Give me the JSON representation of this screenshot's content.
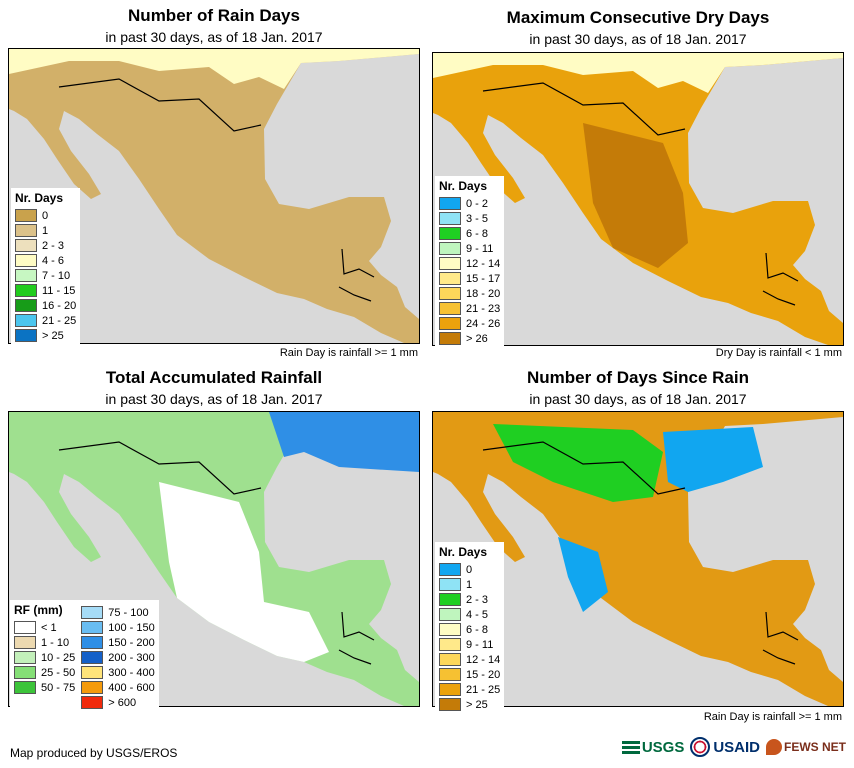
{
  "panels": [
    {
      "id": "rain-days",
      "title": "Number of Rain Days",
      "subtitle": "in past 30 days, as of 18 Jan. 2017",
      "note": "Rain Day is rainfall >= 1 mm",
      "land_color": "#d2b069",
      "legend": {
        "title": "Nr. Days",
        "items": [
          {
            "label": "0",
            "color": "#c9a24c"
          },
          {
            "label": "1",
            "color": "#dcc28a"
          },
          {
            "label": "2 - 3",
            "color": "#ede0bd"
          },
          {
            "label": "4 - 6",
            "color": "#fffcc4"
          },
          {
            "label": "7 - 10",
            "color": "#c7f7c2"
          },
          {
            "label": "11 - 15",
            "color": "#21cc1e"
          },
          {
            "label": "16 - 20",
            "color": "#179c18"
          },
          {
            "label": "21 - 25",
            "color": "#4cc6ee"
          },
          {
            "label": "> 25",
            "color": "#0b73c3"
          }
        ]
      }
    },
    {
      "id": "dry-days",
      "title": "Maximum Consecutive Dry Days",
      "subtitle": "in past 30 days, as of 18 Jan. 2017",
      "note": "Dry Day is rainfall < 1 mm",
      "land_color": "#e9a20c",
      "legend": {
        "title": "Nr. Days",
        "items": [
          {
            "label": "0 - 2",
            "color": "#11a6f0"
          },
          {
            "label": "3 - 5",
            "color": "#8fe3f5"
          },
          {
            "label": "6 - 8",
            "color": "#1fcf22"
          },
          {
            "label": "9 - 11",
            "color": "#bff5be"
          },
          {
            "label": "12 - 14",
            "color": "#fffcc4"
          },
          {
            "label": "15 - 17",
            "color": "#ffe98a"
          },
          {
            "label": "18 - 20",
            "color": "#fdd75a"
          },
          {
            "label": "21 - 23",
            "color": "#f6c132"
          },
          {
            "label": "24 - 26",
            "color": "#eba20c"
          },
          {
            "label": "> 26",
            "color": "#c47b08"
          }
        ]
      }
    },
    {
      "id": "total-rainfall",
      "title": "Total Accumulated Rainfall",
      "subtitle": "in past 30 days, as of 18 Jan. 2017",
      "note": "",
      "land_color": "#9fe08f",
      "legend": {
        "title": "RF (mm)",
        "items": [
          {
            "label": "< 1",
            "color": "#ffffff"
          },
          {
            "label": "1 - 10",
            "color": "#ecd9b0"
          },
          {
            "label": "10 - 25",
            "color": "#c3f0ba"
          },
          {
            "label": "25 - 50",
            "color": "#85df76"
          },
          {
            "label": "50 - 75",
            "color": "#3cc43a"
          },
          {
            "label": "75 - 100",
            "color": "#a6dcf7"
          },
          {
            "label": "100 - 150",
            "color": "#69bdf2"
          },
          {
            "label": "150 - 200",
            "color": "#2f8fe6"
          },
          {
            "label": "200 - 300",
            "color": "#1460c8"
          },
          {
            "label": "300 - 400",
            "color": "#ffe47a"
          },
          {
            "label": "400 - 600",
            "color": "#f59b0c"
          },
          {
            "label": "> 600",
            "color": "#f02a0c"
          }
        ]
      }
    },
    {
      "id": "days-since-rain",
      "title": "Number of Days Since Rain",
      "subtitle": "in past 30 days, as of 18 Jan. 2017",
      "note": "Rain Day is rainfall >= 1 mm",
      "land_color": "#e29a14",
      "legend": {
        "title": "Nr. Days",
        "items": [
          {
            "label": "0",
            "color": "#11a6f0"
          },
          {
            "label": "1",
            "color": "#8fe3f5"
          },
          {
            "label": "2 - 3",
            "color": "#1fcf22"
          },
          {
            "label": "4 - 5",
            "color": "#bff5be"
          },
          {
            "label": "6 - 8",
            "color": "#fffcc4"
          },
          {
            "label": "9 - 11",
            "color": "#ffe98a"
          },
          {
            "label": "12 - 14",
            "color": "#fdd75a"
          },
          {
            "label": "15 - 20",
            "color": "#f6c132"
          },
          {
            "label": "21 - 25",
            "color": "#eba20c"
          },
          {
            "label": "> 25",
            "color": "#c47b08"
          }
        ]
      }
    }
  ],
  "colors": {
    "ocean": "#d9d9d9",
    "border": "#000000"
  },
  "footer": {
    "credit": "Map produced by USGS/EROS"
  },
  "logos": {
    "usgs": "USGS",
    "usaid": "USAID",
    "fews": "FEWS NET"
  }
}
